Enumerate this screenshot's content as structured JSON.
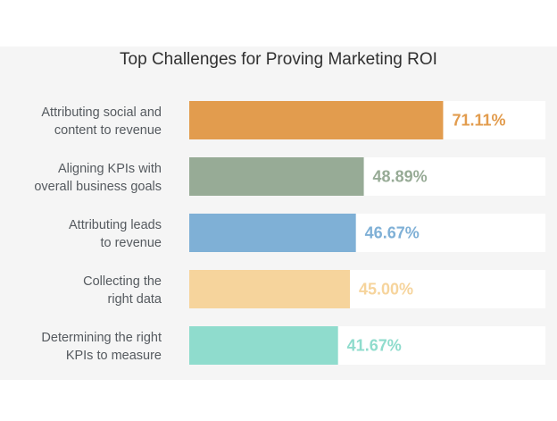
{
  "chart_data": {
    "type": "bar",
    "orientation": "horizontal",
    "title": "Top Challenges for Proving Marketing ROI",
    "categories": [
      [
        "Attributing social and",
        "content to revenue"
      ],
      [
        "Aligning KPIs with",
        "overall business goals"
      ],
      [
        "Attributing leads",
        "to revenue"
      ],
      [
        "Collecting the",
        "right data"
      ],
      [
        "Determining the right",
        "KPIs to measure"
      ]
    ],
    "values": [
      71.11,
      48.89,
      46.67,
      45.0,
      41.67
    ],
    "value_labels": [
      "71.11%",
      "48.89%",
      "46.67%",
      "45.00%",
      "41.67%"
    ],
    "colors": [
      "#e29c4e",
      "#97ab96",
      "#7fb0d6",
      "#f6d49c",
      "#8fdccd"
    ],
    "xlim": [
      0,
      100
    ],
    "grid": false
  }
}
